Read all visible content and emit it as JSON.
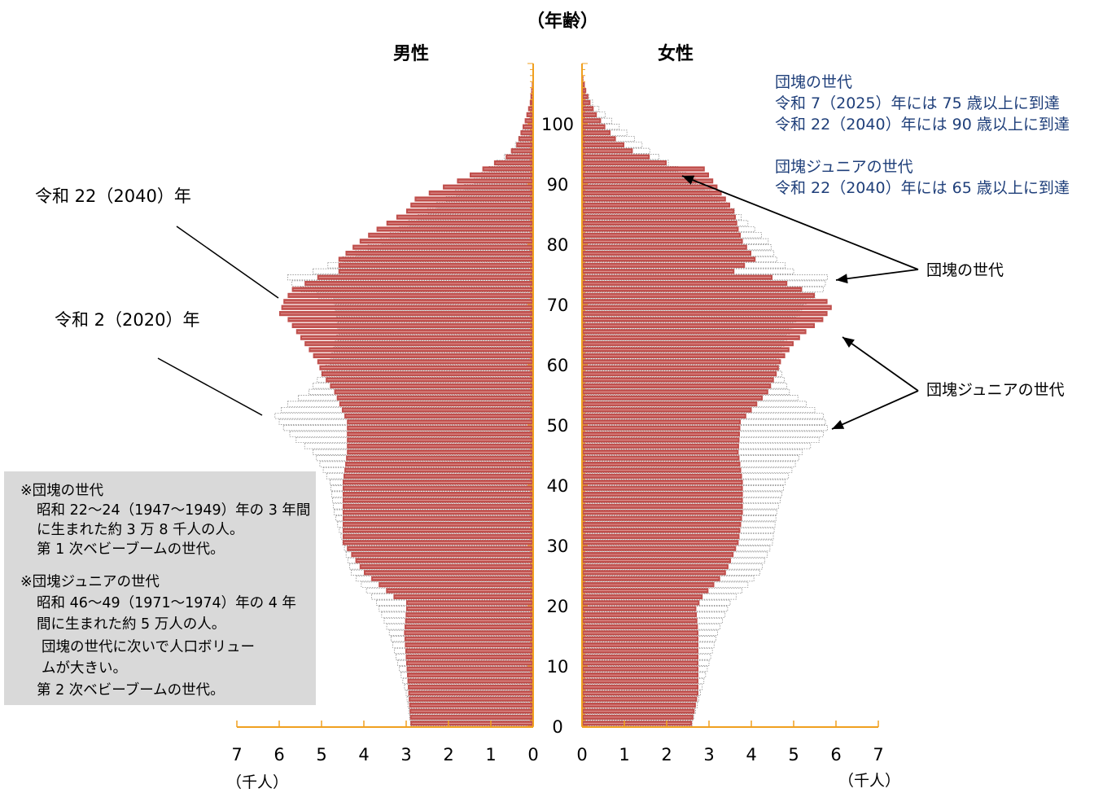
{
  "header": {
    "age_label": "（年齢）",
    "male_label": "男性",
    "female_label": "女性",
    "unit_left": "（千人）",
    "unit_right": "（千人）"
  },
  "year_labels": {
    "y2040": "令和 22（2040）年",
    "y2020": "令和 2（2020）年"
  },
  "annotations": {
    "blue_title1": "団塊の世代",
    "blue_line1": "令和 7（2025）年には 75 歳以上に到達",
    "blue_line2": "令和 22（2040）年には 90 歳以上に到達",
    "blue_title2": "団塊ジュニアの世代",
    "blue_line3": "令和 22（2040）年には 65 歳以上に到達",
    "arrow_label1": "団塊の世代",
    "arrow_label2": "団塊ジュニアの世代"
  },
  "notes": {
    "n1_title": "※団塊の世代",
    "n1_l1": "昭和 22～24（1947～1949）年の 3 年間",
    "n1_l2": "に生まれた約 3 万 8 千人の人。",
    "n1_l3": "第 1 次ベビーブームの世代。",
    "n2_title": "※団塊ジュニアの世代",
    "n2_l1": "昭和 46～49（1971～1974）年の 4 年",
    "n2_l2": "間に生まれた約 5 万人の人。",
    "n2_l3": "団塊の世代に次いで人口ボリュー",
    "n2_l4": "ムが大きい。",
    "n2_l5": "第 2 次ベビーブームの世代。"
  },
  "colors": {
    "bar_2040": "#c0504d",
    "bar_2040_highlight": "#e8a9a7",
    "outline_2020": "#808080",
    "axis": "#f0a020",
    "blue_text": "#1f3f7a"
  },
  "chart_data": {
    "type": "population_pyramid",
    "series": [
      {
        "name": "令和 22（2040）年",
        "style": "filled"
      },
      {
        "name": "令和 2（2020）年",
        "style": "dotted-outline"
      }
    ],
    "age_ticks": [
      "0",
      "10",
      "20",
      "30",
      "40",
      "50",
      "60",
      "70",
      "80",
      "90",
      "100"
    ],
    "x_ticks": [
      "7",
      "6",
      "5",
      "4",
      "3",
      "2",
      "1",
      "0"
    ],
    "xlim": [
      0,
      7
    ],
    "ylim": [
      0,
      109
    ],
    "male_2040": [
      [
        0,
        2.9
      ],
      [
        5,
        2.95
      ],
      [
        10,
        3.0
      ],
      [
        15,
        3.05
      ],
      [
        19,
        3.0
      ],
      [
        20,
        3.0
      ],
      [
        21,
        3.3
      ],
      [
        25,
        4.0
      ],
      [
        30,
        4.5
      ],
      [
        35,
        4.5
      ],
      [
        40,
        4.5
      ],
      [
        45,
        4.4
      ],
      [
        50,
        4.4
      ],
      [
        55,
        4.7
      ],
      [
        58,
        5.0
      ],
      [
        60,
        5.1
      ],
      [
        63,
        5.4
      ],
      [
        65,
        5.6
      ],
      [
        67,
        5.8
      ],
      [
        68,
        6.0
      ],
      [
        70,
        5.9
      ],
      [
        72,
        5.7
      ],
      [
        74,
        5.1
      ],
      [
        75,
        4.6
      ],
      [
        77,
        4.6
      ],
      [
        80,
        4.1
      ],
      [
        82,
        3.7
      ],
      [
        85,
        3.0
      ],
      [
        87,
        2.8
      ],
      [
        90,
        1.8
      ],
      [
        92,
        1.2
      ],
      [
        94,
        0.65
      ],
      [
        96,
        0.4
      ],
      [
        98,
        0.3
      ],
      [
        100,
        0.2
      ],
      [
        103,
        0.08
      ],
      [
        108,
        0.0
      ]
    ],
    "male_2020": [
      [
        0,
        2.9
      ],
      [
        5,
        3.0
      ],
      [
        10,
        3.2
      ],
      [
        15,
        3.4
      ],
      [
        20,
        3.7
      ],
      [
        25,
        4.3
      ],
      [
        30,
        4.5
      ],
      [
        35,
        4.7
      ],
      [
        40,
        4.8
      ],
      [
        45,
        5.2
      ],
      [
        47,
        5.6
      ],
      [
        49,
        5.9
      ],
      [
        51,
        6.1
      ],
      [
        53,
        5.8
      ],
      [
        55,
        5.3
      ],
      [
        60,
        4.8
      ],
      [
        65,
        4.6
      ],
      [
        70,
        4.7
      ],
      [
        72,
        5.5
      ],
      [
        73,
        5.7
      ],
      [
        74,
        5.8
      ],
      [
        75,
        5.2
      ],
      [
        77,
        4.5
      ],
      [
        80,
        3.6
      ],
      [
        85,
        2.5
      ],
      [
        90,
        1.4
      ],
      [
        95,
        0.5
      ],
      [
        100,
        0.1
      ],
      [
        104,
        0.0
      ]
    ],
    "female_2040": [
      [
        0,
        2.6
      ],
      [
        5,
        2.75
      ],
      [
        10,
        2.75
      ],
      [
        15,
        2.75
      ],
      [
        19,
        2.7
      ],
      [
        21,
        2.85
      ],
      [
        25,
        3.4
      ],
      [
        30,
        3.7
      ],
      [
        35,
        3.8
      ],
      [
        40,
        3.8
      ],
      [
        45,
        3.7
      ],
      [
        50,
        3.75
      ],
      [
        55,
        4.4
      ],
      [
        58,
        4.6
      ],
      [
        60,
        4.7
      ],
      [
        63,
        5.0
      ],
      [
        65,
        5.3
      ],
      [
        67,
        5.7
      ],
      [
        69,
        5.9
      ],
      [
        70,
        5.8
      ],
      [
        72,
        5.2
      ],
      [
        74,
        4.5
      ],
      [
        75,
        3.6
      ],
      [
        77,
        4.1
      ],
      [
        80,
        3.8
      ],
      [
        82,
        3.7
      ],
      [
        85,
        3.6
      ],
      [
        88,
        3.3
      ],
      [
        90,
        3.1
      ],
      [
        92,
        2.9
      ],
      [
        93,
        2.0
      ],
      [
        95,
        1.2
      ],
      [
        97,
        0.8
      ],
      [
        99,
        0.55
      ],
      [
        101,
        0.35
      ],
      [
        103,
        0.2
      ],
      [
        105,
        0.1
      ],
      [
        108,
        0.0
      ]
    ],
    "female_2020": [
      [
        0,
        2.6
      ],
      [
        5,
        2.8
      ],
      [
        10,
        3.0
      ],
      [
        15,
        3.2
      ],
      [
        20,
        3.5
      ],
      [
        25,
        4.2
      ],
      [
        30,
        4.5
      ],
      [
        35,
        4.6
      ],
      [
        40,
        4.8
      ],
      [
        45,
        5.2
      ],
      [
        47,
        5.6
      ],
      [
        49,
        5.8
      ],
      [
        51,
        5.7
      ],
      [
        53,
        5.3
      ],
      [
        55,
        4.9
      ],
      [
        60,
        4.6
      ],
      [
        65,
        4.9
      ],
      [
        70,
        5.3
      ],
      [
        72,
        5.7
      ],
      [
        74,
        5.8
      ],
      [
        75,
        5.0
      ],
      [
        77,
        4.6
      ],
      [
        80,
        4.4
      ],
      [
        85,
        3.6
      ],
      [
        90,
        2.7
      ],
      [
        95,
        1.6
      ],
      [
        100,
        0.7
      ],
      [
        103,
        0.25
      ],
      [
        106,
        0.0
      ]
    ]
  }
}
